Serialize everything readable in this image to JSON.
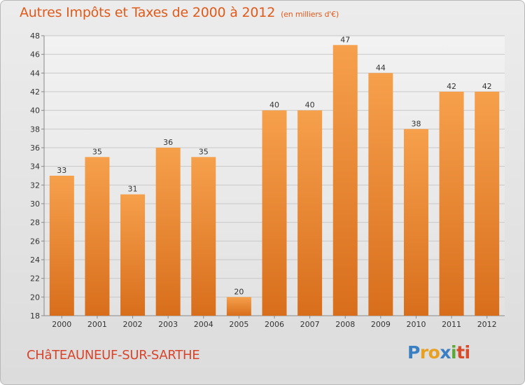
{
  "chart_data": {
    "type": "bar",
    "title": "Autres Impôts et Taxes de 2000 à 2012",
    "unit_label": "(en milliers d'€)",
    "categories": [
      "2000",
      "2001",
      "2002",
      "2003",
      "2004",
      "2005",
      "2006",
      "2007",
      "2008",
      "2009",
      "2010",
      "2011",
      "2012"
    ],
    "values": [
      33,
      35,
      31,
      36,
      35,
      20,
      40,
      40,
      47,
      44,
      38,
      42,
      42
    ],
    "ylim": [
      18,
      48
    ],
    "yticks": [
      18,
      20,
      22,
      24,
      26,
      28,
      30,
      32,
      34,
      36,
      38,
      40,
      42,
      44,
      46,
      48
    ],
    "xlabel": "",
    "ylabel": "",
    "grid": true,
    "bar_color_top": "#f6a04c",
    "bar_color_bottom": "#d86e1c",
    "title_color": "#e05a1a"
  },
  "footer": {
    "city": "CHâTEAUNEUF-SUR-SARTHE",
    "logo": [
      "P",
      "r",
      "o",
      "x",
      "i",
      "t",
      "i"
    ],
    "logo_colors": [
      "#3a7fc4",
      "#e8a020",
      "#e8a020",
      "#3a7fc4",
      "#5aa838",
      "#d84a2a",
      "#d84a2a"
    ]
  }
}
